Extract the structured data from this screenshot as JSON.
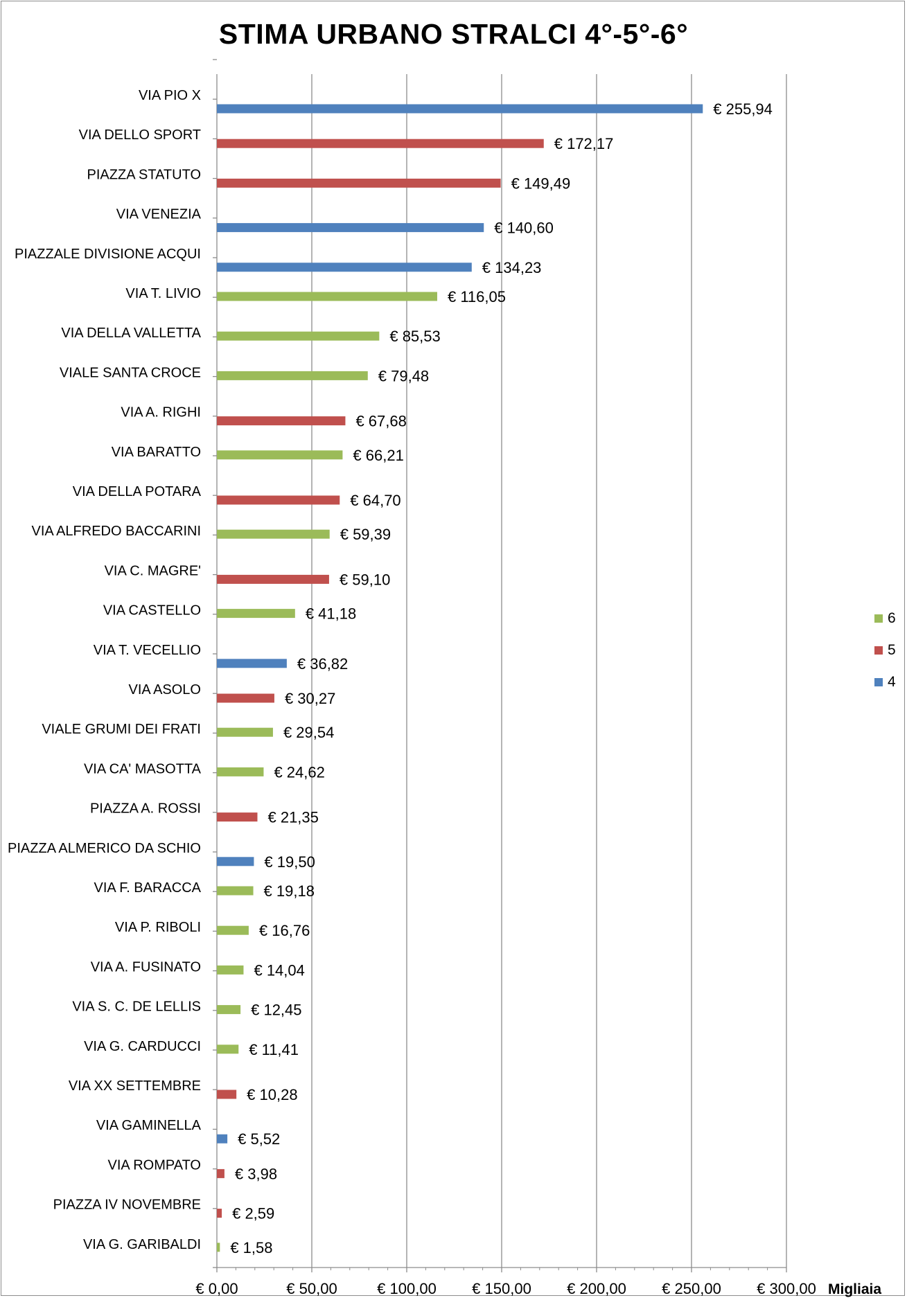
{
  "chart_data": {
    "type": "bar",
    "orientation": "horizontal",
    "title": "STIMA URBANO STRALCI 4°-5°-6°",
    "xlabel": "",
    "ylabel": "",
    "axis_unit_label": "Migliaia",
    "xlim": [
      0,
      300
    ],
    "x_ticks": [
      0,
      50,
      100,
      150,
      200,
      250,
      300
    ],
    "x_tick_labels": [
      "€ 0,00",
      "€ 50,00",
      "€ 100,00",
      "€ 150,00",
      "€ 200,00",
      "€ 250,00",
      "€ 300,00"
    ],
    "grid": "vertical major gridlines",
    "legend_position": "right",
    "series": [
      {
        "name": "6",
        "color": "#9BBB59"
      },
      {
        "name": "5",
        "color": "#C0504D"
      },
      {
        "name": "4",
        "color": "#4F81BD"
      }
    ],
    "categories": [
      "VIA PIO X",
      "VIA DELLO SPORT",
      "PIAZZA STATUTO",
      "VIA VENEZIA",
      "PIAZZALE DIVISIONE ACQUI",
      "VIA T. LIVIO",
      "VIA DELLA VALLETTA",
      "VIALE SANTA CROCE",
      "VIA A. RIGHI",
      "VIA BARATTO",
      "VIA DELLA POTARA",
      "VIA ALFREDO BACCARINI",
      "VIA C. MAGRE'",
      "VIA CASTELLO",
      "VIA T. VECELLIO",
      "VIA ASOLO",
      "VIALE GRUMI DEI FRATI",
      "VIA CA' MASOTTA",
      "PIAZZA A. ROSSI",
      "PIAZZA ALMERICO DA SCHIO",
      "VIA F. BARACCA",
      "VIA P. RIBOLI",
      "VIA A. FUSINATO",
      "VIA S. C. DE LELLIS",
      "VIA G. CARDUCCI",
      "VIA XX SETTEMBRE",
      "VIA GAMINELLA",
      "VIA ROMPATO",
      "PIAZZA IV NOVEMBRE",
      "VIA G. GARIBALDI"
    ],
    "bars": [
      {
        "category": "VIA PIO X",
        "series": "4",
        "value": 255.94,
        "label": "€ 255,94"
      },
      {
        "category": "VIA DELLO SPORT",
        "series": "5",
        "value": 172.17,
        "label": "€ 172,17"
      },
      {
        "category": "PIAZZA STATUTO",
        "series": "5",
        "value": 149.49,
        "label": "€ 149,49"
      },
      {
        "category": "VIA VENEZIA",
        "series": "4",
        "value": 140.6,
        "label": "€ 140,60"
      },
      {
        "category": "PIAZZALE DIVISIONE ACQUI",
        "series": "4",
        "value": 134.23,
        "label": "€ 134,23"
      },
      {
        "category": "VIA T. LIVIO",
        "series": "6",
        "value": 116.05,
        "label": "€ 116,05"
      },
      {
        "category": "VIA DELLA VALLETTA",
        "series": "6",
        "value": 85.53,
        "label": "€ 85,53"
      },
      {
        "category": "VIALE SANTA CROCE",
        "series": "6",
        "value": 79.48,
        "label": "€ 79,48"
      },
      {
        "category": "VIA A. RIGHI",
        "series": "5",
        "value": 67.68,
        "label": "€ 67,68"
      },
      {
        "category": "VIA BARATTO",
        "series": "6",
        "value": 66.21,
        "label": "€ 66,21"
      },
      {
        "category": "VIA DELLA POTARA",
        "series": "5",
        "value": 64.7,
        "label": "€ 64,70"
      },
      {
        "category": "VIA ALFREDO BACCARINI",
        "series": "6",
        "value": 59.39,
        "label": "€ 59,39"
      },
      {
        "category": "VIA C. MAGRE'",
        "series": "5",
        "value": 59.1,
        "label": "€ 59,10"
      },
      {
        "category": "VIA CASTELLO",
        "series": "6",
        "value": 41.18,
        "label": "€ 41,18"
      },
      {
        "category": "VIA T. VECELLIO",
        "series": "4",
        "value": 36.82,
        "label": "€ 36,82"
      },
      {
        "category": "VIA ASOLO",
        "series": "5",
        "value": 30.27,
        "label": "€ 30,27"
      },
      {
        "category": "VIALE GRUMI DEI FRATI",
        "series": "6",
        "value": 29.54,
        "label": "€ 29,54"
      },
      {
        "category": "VIA CA' MASOTTA",
        "series": "6",
        "value": 24.62,
        "label": "€ 24,62"
      },
      {
        "category": "PIAZZA A. ROSSI",
        "series": "5",
        "value": 21.35,
        "label": "€ 21,35"
      },
      {
        "category": "PIAZZA ALMERICO DA SCHIO",
        "series": "4",
        "value": 19.5,
        "label": "€ 19,50"
      },
      {
        "category": "VIA F. BARACCA",
        "series": "6",
        "value": 19.18,
        "label": "€ 19,18"
      },
      {
        "category": "VIA P. RIBOLI",
        "series": "6",
        "value": 16.76,
        "label": "€ 16,76"
      },
      {
        "category": "VIA A. FUSINATO",
        "series": "6",
        "value": 14.04,
        "label": "€ 14,04"
      },
      {
        "category": "VIA S. C. DE LELLIS",
        "series": "6",
        "value": 12.45,
        "label": "€ 12,45"
      },
      {
        "category": "VIA G. CARDUCCI",
        "series": "6",
        "value": 11.41,
        "label": "€ 11,41"
      },
      {
        "category": "VIA XX SETTEMBRE",
        "series": "5",
        "value": 10.28,
        "label": "€ 10,28"
      },
      {
        "category": "VIA GAMINELLA",
        "series": "4",
        "value": 5.52,
        "label": "€ 5,52"
      },
      {
        "category": "VIA ROMPATO",
        "series": "5",
        "value": 3.98,
        "label": "€ 3,98"
      },
      {
        "category": "PIAZZA IV NOVEMBRE",
        "series": "5",
        "value": 2.59,
        "label": "€ 2,59"
      },
      {
        "category": "VIA G. GARIBALDI",
        "series": "6",
        "value": 1.58,
        "label": "€ 1,58"
      }
    ]
  }
}
